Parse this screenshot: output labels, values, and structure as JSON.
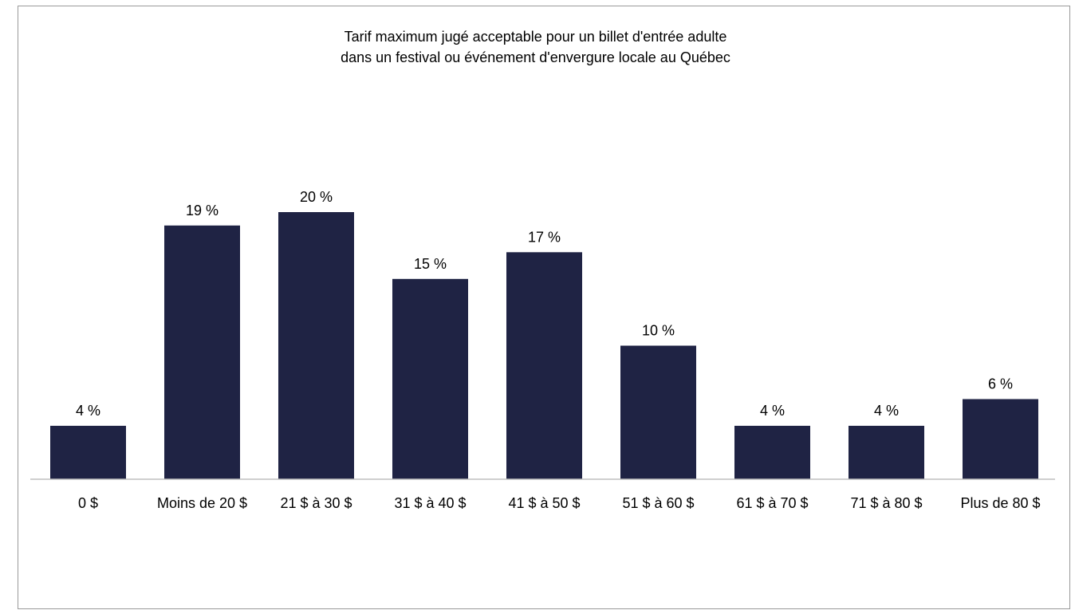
{
  "chart_data": {
    "type": "bar",
    "title": [
      "Tarif maximum jugé acceptable pour un billet d'entrée adulte",
      "dans un festival ou événement d'envergure locale au Québec"
    ],
    "categories": [
      "0 $",
      "Moins de 20 $",
      "21 $ à 30 $",
      "31 $ à 40 $",
      "41 $ à 50 $",
      "51 $ à 60 $",
      "61 $ à 70 $",
      "71 $ à 80 $",
      "Plus de 80 $"
    ],
    "values": [
      4,
      19,
      20,
      15,
      17,
      10,
      4,
      4,
      6
    ],
    "data_labels": [
      "4 %",
      "19 %",
      "20 %",
      "15 %",
      "17 %",
      "10 %",
      "4 %",
      "4 %",
      "6 %"
    ],
    "value_unit": "%",
    "ylim": [
      0,
      20
    ],
    "xlabel": "",
    "ylabel": "",
    "grid": false,
    "legend": "none",
    "colors": {
      "bar": "#1f2344",
      "axis": "#bfbfbf",
      "frame": "#9a9a9a",
      "text": "#000000"
    }
  }
}
